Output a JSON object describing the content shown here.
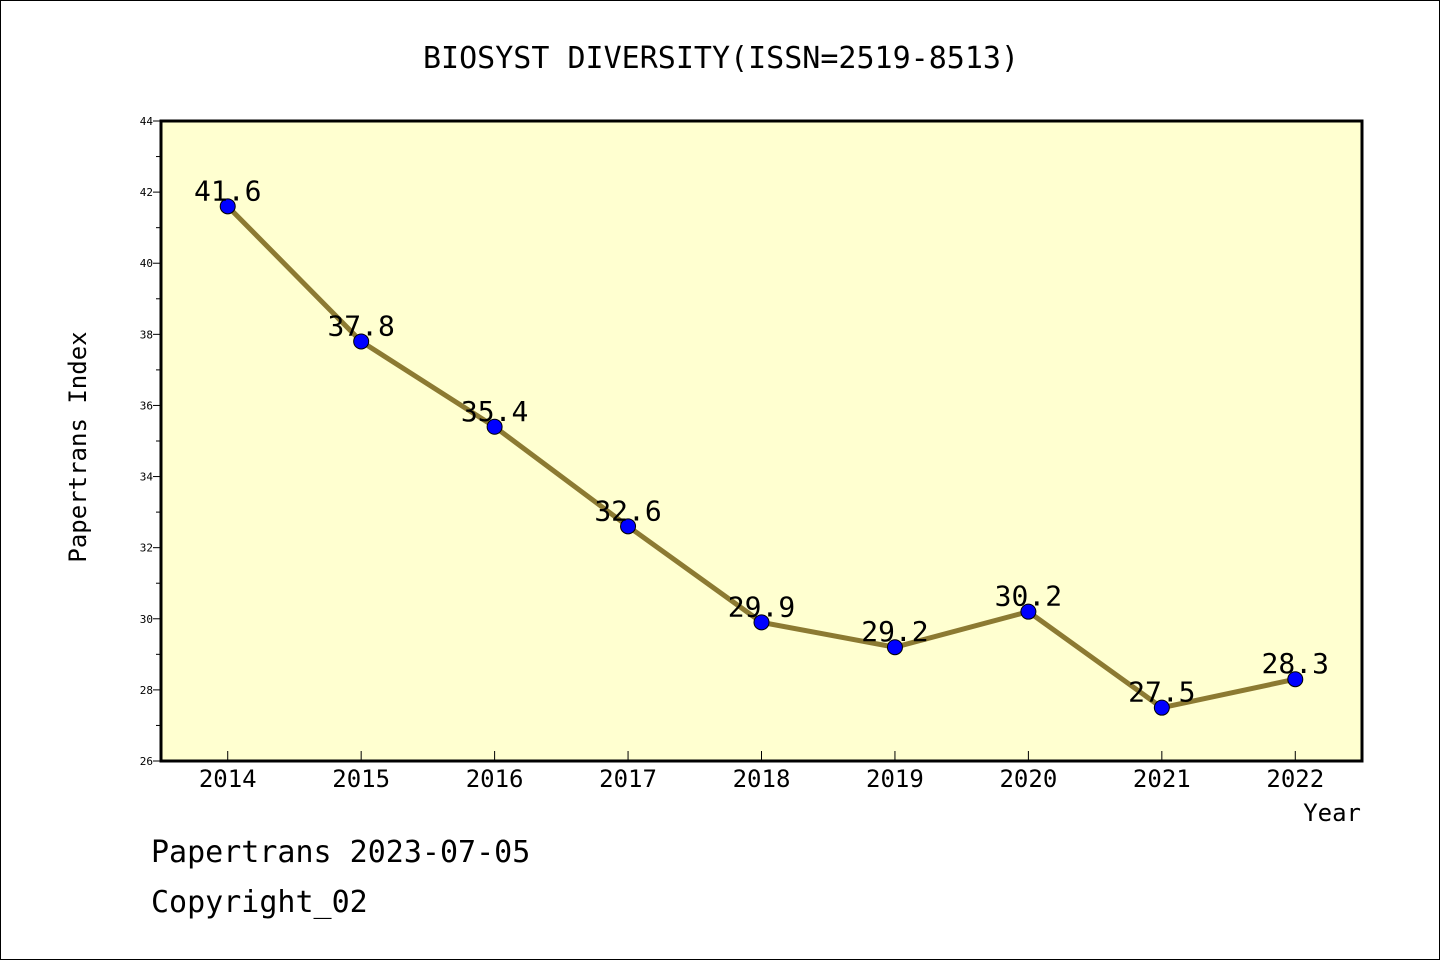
{
  "chart_data": {
    "type": "line",
    "title": "BIOSYST DIVERSITY(ISSN=2519-8513)",
    "xlabel": "Year",
    "ylabel": "Papertrans Index",
    "categories": [
      "2014",
      "2015",
      "2016",
      "2017",
      "2018",
      "2019",
      "2020",
      "2021",
      "2022"
    ],
    "values": [
      41.6,
      37.8,
      35.4,
      32.6,
      29.9,
      29.2,
      30.2,
      27.5,
      28.3
    ],
    "data_labels": [
      "41.6",
      "37.8",
      "35.4",
      "32.6",
      "29.9",
      "29.2",
      "30.2",
      "27.5",
      "28.3"
    ],
    "ylim": [
      26,
      44
    ],
    "y_ticks": [
      "26",
      "28",
      "30",
      "32",
      "34",
      "36",
      "38",
      "40",
      "42",
      "44"
    ],
    "grid": false,
    "colors": {
      "plot_background": "#ffffd0",
      "line": "#8c7a32",
      "marker": "#0000ff"
    }
  },
  "footer": {
    "line1": "Papertrans 2023-07-05",
    "line2": "Copyright_02"
  }
}
